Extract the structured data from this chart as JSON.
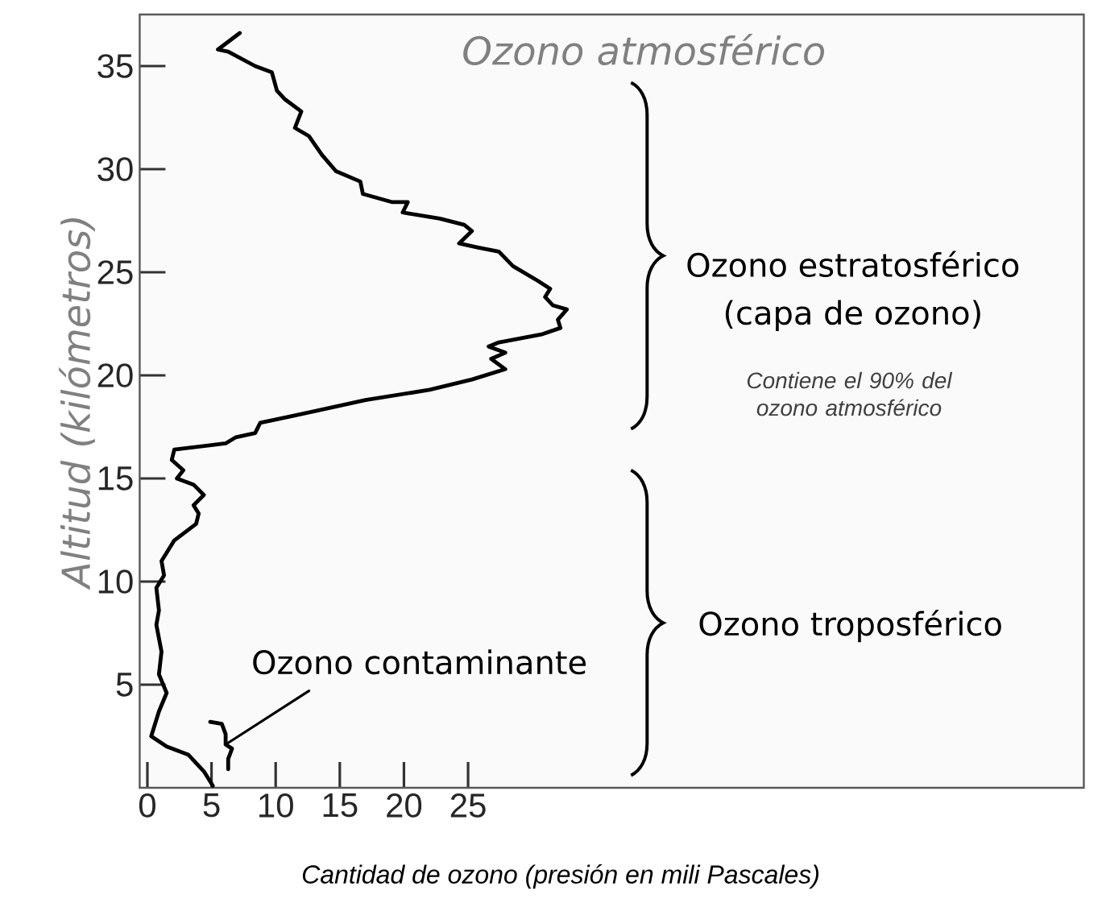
{
  "chart_data": {
    "type": "line",
    "title": "Ozono atmosférico",
    "xlabel": "Cantidad de ozono (presión en mili Pascales)",
    "ylabel": "Altitud (kilómetros)",
    "annotations": [
      "Ozono estratosférico",
      "(capa de ozono)",
      "Contiene el 90% del ozono atmosférico",
      "Ozono troposférico",
      {
        "text": "Ozono contaminante",
        "x": 6.1,
        "y": 2.1
      }
    ],
    "series": [
      {
        "color": "#000000",
        "x": [
          7.2,
          5.5,
          6.3,
          8.4,
          9.7,
          10.1,
          10.7,
          12.0,
          11.5,
          12.6,
          13.6,
          14.7,
          16.6,
          16.8,
          19.1,
          20.3,
          19.9,
          22.8,
          24.7,
          25.3,
          24.3,
          25.8,
          27.4,
          28.5,
          30.4,
          31.4,
          31.0,
          31.6,
          32.7,
          32.0,
          32.2,
          30.8,
          27.4,
          26.6,
          27.9,
          26.8,
          27.9,
          25.3,
          22.0,
          17.0,
          11.1,
          8.8,
          8.4,
          6.9,
          6.1,
          2.1,
          1.9,
          2.8,
          2.3,
          3.6,
          4.4,
          3.6,
          4.0,
          3.8,
          2.1,
          1.1,
          1.3,
          0.7,
          0.9,
          0.7,
          1.1,
          0.9,
          1.5,
          0.9,
          0.3,
          1.5,
          3.2,
          4.4,
          5.1
        ],
        "values": [
          36.6,
          35.8,
          35.7,
          35.0,
          34.7,
          33.8,
          33.4,
          32.8,
          32.0,
          31.6,
          30.7,
          29.9,
          29.4,
          28.8,
          28.4,
          28.4,
          27.9,
          27.6,
          27.3,
          27.0,
          26.4,
          26.2,
          26.0,
          25.3,
          24.6,
          24.2,
          23.8,
          23.4,
          23.2,
          22.7,
          22.3,
          22.0,
          21.6,
          21.4,
          21.1,
          20.8,
          20.3,
          19.8,
          19.3,
          18.8,
          18.0,
          17.7,
          17.2,
          17.0,
          16.7,
          16.4,
          15.9,
          15.4,
          15.0,
          14.7,
          14.2,
          13.7,
          13.3,
          12.8,
          12.0,
          11.0,
          10.3,
          9.7,
          8.6,
          7.9,
          6.6,
          5.5,
          4.6,
          3.7,
          2.5,
          2.0,
          1.6,
          0.8,
          0.1
        ]
      },
      {
        "color": "#000000",
        "x": [
          4.9,
          5.8,
          6.1,
          6.1,
          6.6,
          6.3,
          6.3
        ],
        "values": [
          3.2,
          3.1,
          2.6,
          2.1,
          1.9,
          1.4,
          0.9
        ]
      }
    ],
    "xlim": [
      -0.6,
      73
    ],
    "ylim": [
      0,
      37.5
    ],
    "xticks": [
      0,
      5,
      10,
      15,
      20,
      25
    ],
    "yticks": [
      5,
      10,
      15,
      20,
      25,
      30,
      35
    ],
    "marker": "none",
    "line_style": "solid"
  }
}
